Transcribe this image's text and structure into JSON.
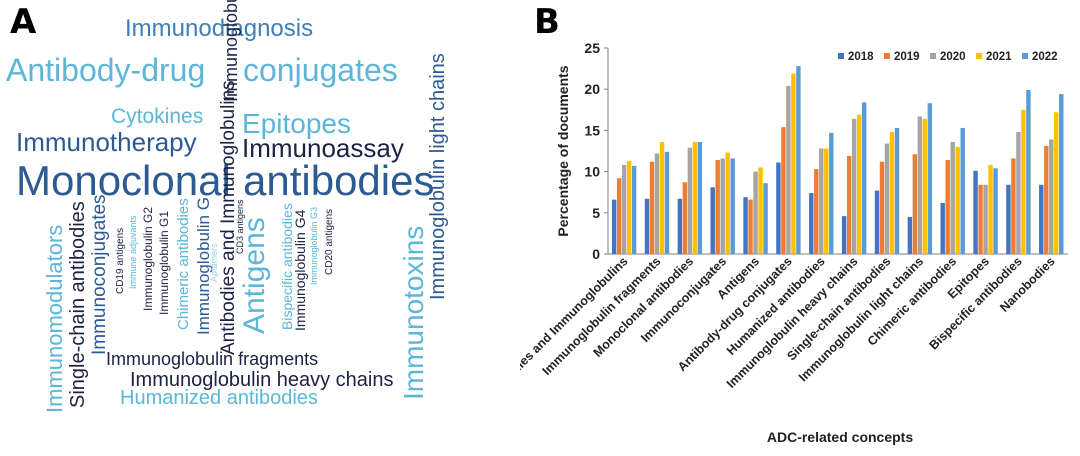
{
  "panel_a": {
    "letter": "A",
    "words": [
      {
        "text": "Immunodiagnosis",
        "color": "#3f7fb5"
      },
      {
        "text": "Antibody-drug",
        "color": "#5cb6d8"
      },
      {
        "text": "conjugates",
        "color": "#5cb6d8"
      },
      {
        "text": "Immunoglobulins",
        "color": "#1b2244"
      },
      {
        "text": "Cytokines",
        "color": "#5cb6d8"
      },
      {
        "text": "Epitopes",
        "color": "#5cb6d8"
      },
      {
        "text": "Immunotherapy",
        "color": "#2c5a93"
      },
      {
        "text": "Immunoassay",
        "color": "#1b2244"
      },
      {
        "text": "Immunoglobulin light chains",
        "color": "#2c5a93"
      },
      {
        "text": "Monoclonal",
        "color": "#2c5a93"
      },
      {
        "text": "antibodies",
        "color": "#2c5a93"
      },
      {
        "text": "Immunomodulators",
        "color": "#5cb6d8"
      },
      {
        "text": "Single-chain antibodies",
        "color": "#1b2244"
      },
      {
        "text": "Immunoconjugates",
        "color": "#2c5a93"
      },
      {
        "text": "CD19 antigens",
        "color": "#1b2244"
      },
      {
        "text": "Immune adjuvants",
        "color": "#5cb6d8"
      },
      {
        "text": "Immunoglobulin G2",
        "color": "#1b2244"
      },
      {
        "text": "Immunoglobulin G1",
        "color": "#1b2244"
      },
      {
        "text": "Chimeric antibodies",
        "color": "#5cb6d8"
      },
      {
        "text": "Immunoglobulin G",
        "color": "#2c5a93"
      },
      {
        "text": "Aptamers",
        "color": "#9fd3ea"
      },
      {
        "text": "Antibodies and Immunoglobulins",
        "color": "#1b2244"
      },
      {
        "text": "Antigens",
        "color": "#5cb6d8"
      },
      {
        "text": "CD3 antigens",
        "color": "#1b2244"
      },
      {
        "text": "Bispecific antibodies",
        "color": "#5cb6d8"
      },
      {
        "text": "Immunoglobulin G4",
        "color": "#1b2244"
      },
      {
        "text": "Immunoglobulin G3",
        "color": "#5cb6d8"
      },
      {
        "text": "CD20 antigens",
        "color": "#1b2244"
      },
      {
        "text": "Immunotoxins",
        "color": "#5cb6d8"
      },
      {
        "text": "Immunoglobulin fragments",
        "color": "#1b2244"
      },
      {
        "text": "Immunoglobulin heavy chains",
        "color": "#1b2244"
      },
      {
        "text": "Humanized antibodies",
        "color": "#5cb6d8"
      }
    ]
  },
  "panel_b": {
    "letter": "B"
  },
  "chart_data": {
    "type": "bar",
    "title": "",
    "xlabel": "ADC-related concepts",
    "ylabel": "Percentage of documents",
    "ylim": [
      0,
      25
    ],
    "yticks": [
      "0",
      "5",
      "10",
      "15",
      "20",
      "25"
    ],
    "grid": false,
    "legend_position": "top-right",
    "categories": [
      "Antibodies and Immunoglobulins",
      "Immunoglobulin fragments",
      "Monoclonal antibodies",
      "Immunoconjugates",
      "Antigens",
      "Antibody-drug conjugates",
      "Humanized antibodies",
      "Immunoglobulin heavy chains",
      "Single-chain antibodies",
      "Immunoglobulin light chains",
      "Chimeric antibodies",
      "Epitopes",
      "Bispecific antibodies",
      "Nanobodies"
    ],
    "series": [
      {
        "name": "2018",
        "color": "#4472c4",
        "values": [
          6.6,
          6.7,
          6.7,
          8.1,
          6.9,
          11.1,
          7.4,
          4.6,
          7.7,
          4.5,
          6.2,
          10.1,
          8.4,
          8.4
        ]
      },
      {
        "name": "2019",
        "color": "#ed7d31",
        "values": [
          9.2,
          11.2,
          8.7,
          11.4,
          6.6,
          15.4,
          10.3,
          11.9,
          11.2,
          12.1,
          11.4,
          8.4,
          11.6,
          13.1
        ]
      },
      {
        "name": "2020",
        "color": "#a5a5a5",
        "values": [
          10.8,
          12.2,
          12.9,
          11.6,
          10.0,
          20.4,
          12.8,
          16.4,
          13.4,
          16.7,
          13.6,
          8.4,
          14.8,
          13.9
        ]
      },
      {
        "name": "2021",
        "color": "#ffc000",
        "values": [
          11.3,
          13.6,
          13.6,
          12.3,
          10.5,
          21.9,
          12.8,
          16.9,
          14.8,
          16.4,
          13.0,
          10.8,
          17.5,
          17.2
        ]
      },
      {
        "name": "2022",
        "color": "#5b9bd5",
        "values": [
          10.7,
          12.4,
          13.6,
          11.6,
          8.6,
          22.8,
          14.7,
          18.4,
          15.3,
          18.3,
          15.3,
          10.4,
          19.9,
          19.4
        ]
      }
    ]
  }
}
